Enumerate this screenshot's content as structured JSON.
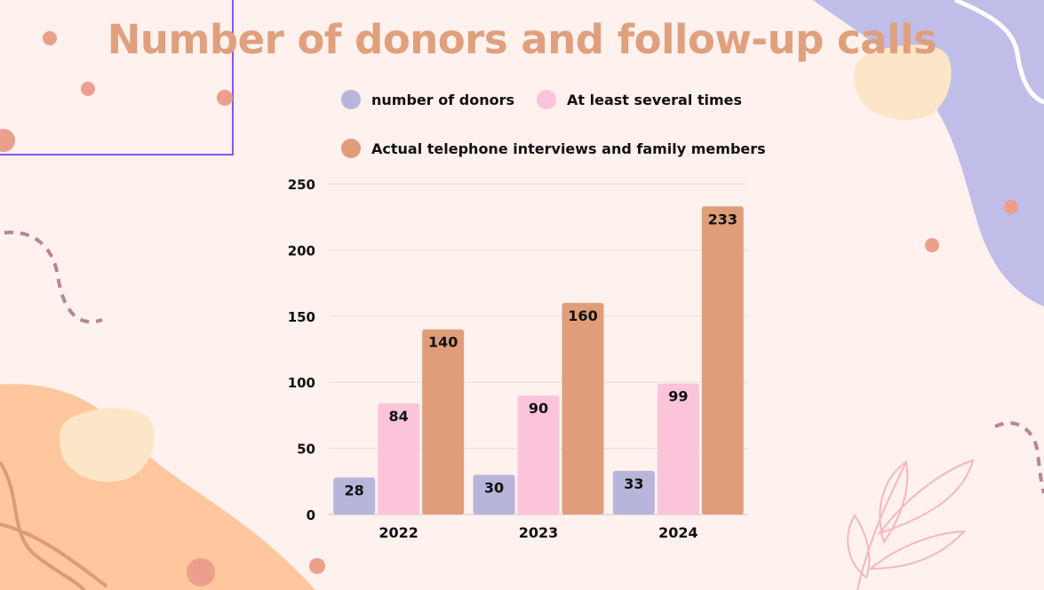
{
  "colors": {
    "background": "#fef1ee",
    "title": "#e0a07d",
    "donors": "#b8b5da",
    "several_times": "#fbc4da",
    "interviews": "#df9e79",
    "frame": "#8a55e6",
    "lavender_blob": "#c0bde8",
    "peach_blob": "#fec79d",
    "cream_blob": "#fde6c7",
    "dot": "#ec9f8b",
    "dash": "#b78790",
    "leaf": "#f6b7bc"
  },
  "title": "Number of donors and follow-up calls",
  "chart_data": {
    "type": "bar",
    "categories": [
      "2022",
      "2023",
      "2024"
    ],
    "series": [
      {
        "name": "number of donors",
        "values": [
          28,
          30,
          33
        ]
      },
      {
        "name": "At least several times",
        "values": [
          84,
          90,
          99
        ]
      },
      {
        "name": "Actual telephone interviews and family members",
        "values": [
          140,
          160,
          233
        ]
      }
    ],
    "ylim": [
      0,
      250
    ],
    "yticks": [
      0,
      50,
      100,
      150,
      200,
      250
    ],
    "grid": true,
    "legend": "top",
    "data_labels": true,
    "xlabel": "",
    "ylabel": ""
  }
}
